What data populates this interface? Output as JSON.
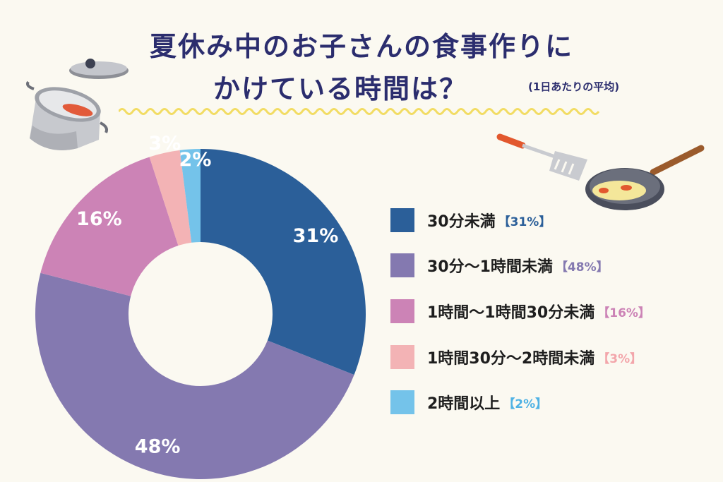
{
  "header": {
    "title_line1": "夏休み中のお子さんの食事作りに",
    "title_line2": "かけている時間は？",
    "subnote": "(1日あたりの平均)"
  },
  "colors": {
    "title": "#2b2d6e",
    "background": "#fbf9f1",
    "wavy": "#f2dc63"
  },
  "decorations": {
    "pot": "cooking-pot-icon",
    "pan": "frying-pan-icon",
    "spatula": "spatula-icon"
  },
  "chart_data": {
    "type": "pie",
    "donut": true,
    "title": "夏休み中のお子さんの食事作りにかけている時間は？",
    "subtitle": "(1日あたりの平均)",
    "legend_position": "right",
    "series": [
      {
        "name": "30分未満",
        "value": 31,
        "label": "31%",
        "legend_pct": "【31%】",
        "color": "#2b5f99",
        "pct_color": "#2b5f99"
      },
      {
        "name": "30分～1時間未満",
        "value": 48,
        "label": "48%",
        "legend_pct": "【48%】",
        "color": "#8479b0",
        "pct_color": "#8479b0"
      },
      {
        "name": "1時間～1時間30分未満",
        "value": 16,
        "label": "16%",
        "legend_pct": "【16%】",
        "color": "#cc83b6",
        "pct_color": "#cc83b6"
      },
      {
        "name": "1時間30分～2時間未満",
        "value": 3,
        "label": "3%",
        "legend_pct": "【3%】",
        "color": "#f3b3b5",
        "pct_color": "#f3a6ab"
      },
      {
        "name": "2時間以上",
        "value": 2,
        "label": "2%",
        "legend_pct": "【2%】",
        "color": "#74c3ea",
        "pct_color": "#4fb2e4"
      }
    ]
  }
}
